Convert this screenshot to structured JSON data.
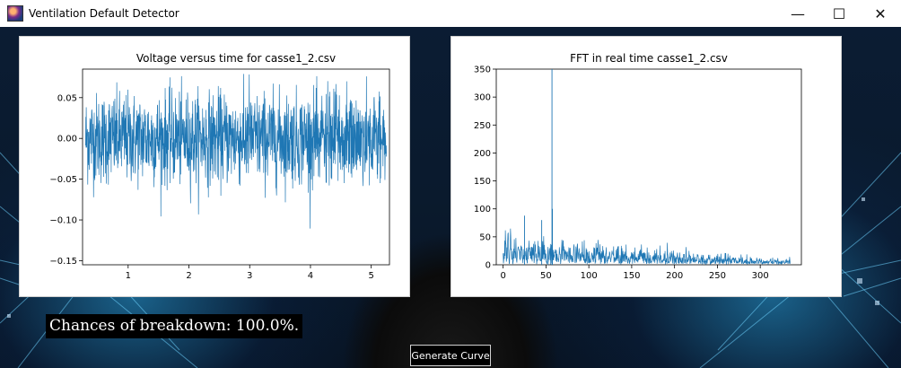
{
  "window": {
    "title": "Ventilation Default Detector",
    "controls": {
      "minimize": "—",
      "maximize": "☐",
      "close": "✕"
    },
    "icon": "app-logo-icon"
  },
  "status": {
    "chances_text": "Chances of breakdown: 100.0%."
  },
  "buttons": {
    "generate_label": "Generate Curve"
  },
  "colors": {
    "series": "#1f77b4",
    "axes": "#000000",
    "panel_bg": "#ffffff"
  },
  "chart_data": [
    {
      "type": "line",
      "title": "Voltage versus time for casse1_2.csv",
      "xlabel": "",
      "ylabel": "",
      "xlim": [
        0.25,
        5.3
      ],
      "ylim": [
        -0.155,
        0.085
      ],
      "xticks": [
        1,
        2,
        3,
        4,
        5
      ],
      "yticks": [
        0.05,
        0.0,
        -0.05,
        -0.1,
        -0.15
      ],
      "ytick_labels": [
        "0.05",
        "0.00",
        "−0.05",
        "−0.10",
        "−0.15"
      ],
      "x_range": [
        0.3,
        5.25
      ],
      "series": [
        {
          "noise": {
            "center": 0.0,
            "typical_amplitude": 0.05,
            "max": 0.08,
            "min": -0.14
          }
        }
      ],
      "grid": false,
      "legend": "none"
    },
    {
      "type": "line",
      "title": "FFT in real time casse1_2.csv",
      "xlabel": "",
      "ylabel": "",
      "xlim": [
        -8,
        348
      ],
      "ylim": [
        0,
        350
      ],
      "xticks": [
        0,
        50,
        100,
        150,
        200,
        250,
        300
      ],
      "yticks": [
        0,
        50,
        100,
        150,
        200,
        250,
        300,
        350
      ],
      "x_range": [
        0,
        335
      ],
      "peaks": [
        {
          "x": 57,
          "y": 350
        },
        {
          "x": 57.5,
          "y": 100
        },
        {
          "x": 25,
          "y": 88
        },
        {
          "x": 45,
          "y": 80
        }
      ],
      "envelope": [
        {
          "x": 0,
          "y": 45
        },
        {
          "x": 50,
          "y": 40
        },
        {
          "x": 100,
          "y": 32
        },
        {
          "x": 150,
          "y": 25
        },
        {
          "x": 200,
          "y": 20
        },
        {
          "x": 250,
          "y": 15
        },
        {
          "x": 300,
          "y": 10
        },
        {
          "x": 335,
          "y": 8
        }
      ],
      "grid": false,
      "legend": "none"
    }
  ]
}
